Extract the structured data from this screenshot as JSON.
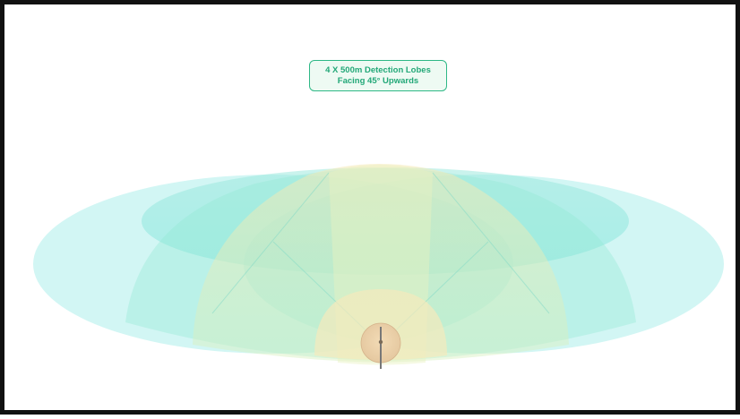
{
  "callout": {
    "line1": "4 X 500m Detection Lobes",
    "line2": "Facing 45° Upwards"
  },
  "colors": {
    "frame": "#111111",
    "background": "#ffffff",
    "lobe_cyan": "#7de6e0",
    "lobe_green": "#a6ecc6",
    "lobe_yellow": "#f3e7ad",
    "dome_peach": "#f0d4ac",
    "callout_border": "#2eb886",
    "callout_text": "#23a878"
  }
}
